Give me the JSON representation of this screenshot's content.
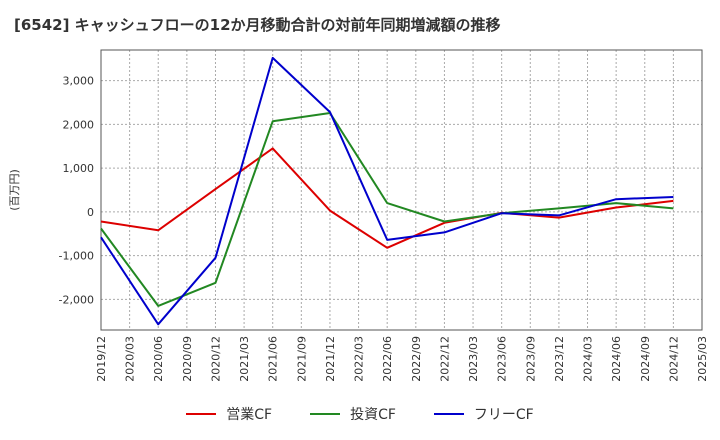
{
  "title": "[6542]  キャッシュフローの12か月移動合計の対前年同期増減額の推移",
  "chart_data": {
    "type": "line",
    "ylabel": "(百万円)",
    "ylim": [
      -2700,
      3700
    ],
    "yticks": [
      -2000,
      -1000,
      0,
      1000,
      2000,
      3000
    ],
    "ytick_labels": [
      "-2,000",
      "-1,000",
      "0",
      "1,000",
      "2,000",
      "3,000"
    ],
    "categories": [
      "2019/12",
      "2020/03",
      "2020/06",
      "2020/09",
      "2020/12",
      "2021/03",
      "2021/06",
      "2021/09",
      "2021/12",
      "2022/03",
      "2022/06",
      "2022/09",
      "2022/12",
      "2023/03",
      "2023/06",
      "2023/09",
      "2023/12",
      "2024/03",
      "2024/06",
      "2024/09",
      "2024/12",
      "2025/03"
    ],
    "grid": true,
    "legend_position": "bottom",
    "series": [
      {
        "name": "営業CF",
        "color": "#dd0000",
        "points": [
          [
            0,
            -220
          ],
          [
            2,
            -420
          ],
          [
            4,
            520
          ],
          [
            6,
            1450
          ],
          [
            8,
            30
          ],
          [
            10,
            -820
          ],
          [
            12,
            -250
          ],
          [
            14,
            -20
          ],
          [
            16,
            -130
          ],
          [
            18,
            100
          ],
          [
            20,
            250
          ]
        ]
      },
      {
        "name": "投資CF",
        "color": "#228822",
        "points": [
          [
            0,
            -380
          ],
          [
            2,
            -2150
          ],
          [
            4,
            -1620
          ],
          [
            6,
            2070
          ],
          [
            8,
            2260
          ],
          [
            10,
            200
          ],
          [
            12,
            -220
          ],
          [
            14,
            -30
          ],
          [
            16,
            80
          ],
          [
            18,
            200
          ],
          [
            20,
            80
          ]
        ]
      },
      {
        "name": "フリーCF",
        "color": "#0000cc",
        "points": [
          [
            0,
            -580
          ],
          [
            2,
            -2570
          ],
          [
            4,
            -1050
          ],
          [
            6,
            3520
          ],
          [
            8,
            2280
          ],
          [
            10,
            -640
          ],
          [
            12,
            -470
          ],
          [
            14,
            -30
          ],
          [
            16,
            -80
          ],
          [
            18,
            290
          ],
          [
            20,
            340
          ]
        ]
      }
    ]
  }
}
